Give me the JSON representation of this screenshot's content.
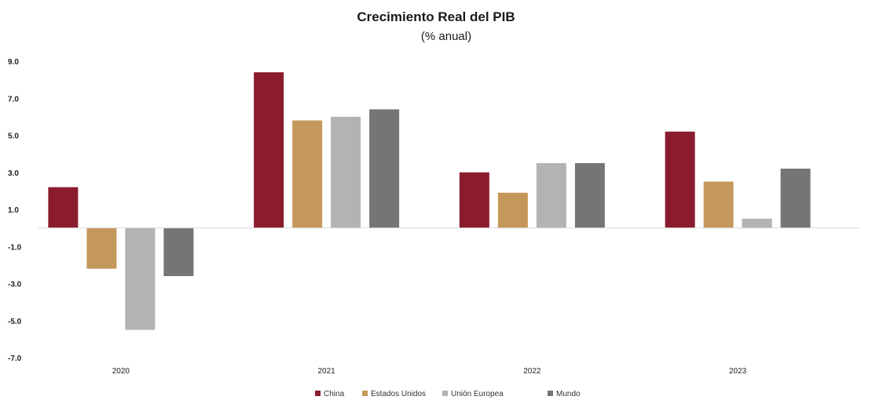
{
  "chart_data": {
    "type": "bar",
    "title": "Crecimiento Real del PIB",
    "subtitle": "(% anual)",
    "xlabel": "",
    "ylabel": "",
    "categories": [
      "2020",
      "2021",
      "2022",
      "2023"
    ],
    "series": [
      {
        "name": "China",
        "color": "#8b1c2e",
        "values": [
          2.2,
          8.4,
          3.0,
          5.2
        ]
      },
      {
        "name": "Estados Unidos",
        "color": "#c4975a",
        "values": [
          -2.2,
          5.8,
          1.9,
          2.5
        ]
      },
      {
        "name": "Unión Europea",
        "color": "#b3b3b3",
        "values": [
          -5.5,
          6.0,
          3.5,
          0.5
        ]
      },
      {
        "name": "Mundo",
        "color": "#777474",
        "values": [
          -2.6,
          6.4,
          3.5,
          3.2
        ]
      }
    ],
    "yticks": [
      "9.0",
      "7.0",
      "5.0",
      "3.0",
      "1.0",
      "-1.0",
      "-3.0",
      "-5.0",
      "-7.0"
    ],
    "ylim": [
      -7,
      9
    ],
    "grid": false,
    "legend_position": "bottom"
  }
}
